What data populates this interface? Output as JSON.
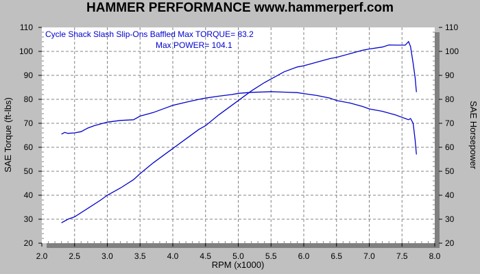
{
  "chart_data": {
    "type": "line",
    "title": "HAMMER PERFORMANCE www.hammerperf.com",
    "xlabel": "RPM (x1000)",
    "ylabel": "SAE Torque (ft-lbs)",
    "y2label": "SAE Horsepower",
    "xlim": [
      2.0,
      8.0
    ],
    "ylim": [
      20,
      110
    ],
    "xticks": [
      "2.0",
      "2.5",
      "3.0",
      "3.5",
      "4.0",
      "4.5",
      "5.0",
      "5.5",
      "6.0",
      "6.5",
      "7.0",
      "7.5",
      "8.0"
    ],
    "yticks": [
      "20",
      "30",
      "40",
      "50",
      "60",
      "70",
      "80",
      "90",
      "100",
      "110"
    ],
    "grid": true,
    "annotation_line1": "Cycle Shack Slash Slip-Ons Baffled  Max TORQUE= 83.2",
    "annotation_line2": "Max POWER= 104.1",
    "line_color": "#0000cc",
    "series": [
      {
        "key": "torque",
        "x": [
          2.3,
          2.35,
          2.4,
          2.5,
          2.6,
          2.7,
          2.8,
          3.0,
          3.2,
          3.4,
          3.5,
          3.7,
          3.9,
          4.0,
          4.2,
          4.4,
          4.5,
          4.7,
          4.9,
          5.0,
          5.2,
          5.4,
          5.5,
          5.7,
          5.9,
          6.0,
          6.2,
          6.4,
          6.5,
          6.7,
          6.9,
          7.0,
          7.2,
          7.4,
          7.5,
          7.55,
          7.6,
          7.63,
          7.67,
          7.7,
          7.72
        ],
        "values": [
          65.5,
          66.2,
          65.8,
          66,
          66.5,
          68,
          69,
          70.5,
          71.2,
          71.5,
          73,
          74.5,
          76.5,
          77.5,
          78.8,
          80,
          80.5,
          81.3,
          82,
          82.5,
          82.9,
          83.1,
          83.2,
          83,
          82.8,
          82.4,
          81.6,
          80.5,
          79.5,
          78.5,
          77,
          76,
          75,
          73.5,
          72.5,
          72,
          71.5,
          72,
          70,
          63,
          57
        ]
      },
      {
        "key": "horsepower",
        "x": [
          2.3,
          2.4,
          2.5,
          2.7,
          2.9,
          3.0,
          3.2,
          3.4,
          3.5,
          3.7,
          3.9,
          4.0,
          4.2,
          4.4,
          4.5,
          4.7,
          4.9,
          5.0,
          5.2,
          5.4,
          5.5,
          5.7,
          5.9,
          6.0,
          6.2,
          6.4,
          6.5,
          6.7,
          6.9,
          7.0,
          7.2,
          7.3,
          7.4,
          7.5,
          7.55,
          7.6,
          7.63,
          7.67,
          7.7,
          7.72
        ],
        "values": [
          28.5,
          30,
          31,
          34.5,
          38,
          40,
          43,
          46.5,
          49,
          53.5,
          57.5,
          59.5,
          63.5,
          67.5,
          69,
          73.5,
          77.5,
          79.5,
          83.5,
          87,
          88.5,
          91.5,
          93.5,
          94,
          95.5,
          97,
          97.5,
          99,
          100.5,
          101,
          101.8,
          102.7,
          102.6,
          102.6,
          102.6,
          104.1,
          102,
          95,
          89,
          83
        ]
      }
    ]
  }
}
